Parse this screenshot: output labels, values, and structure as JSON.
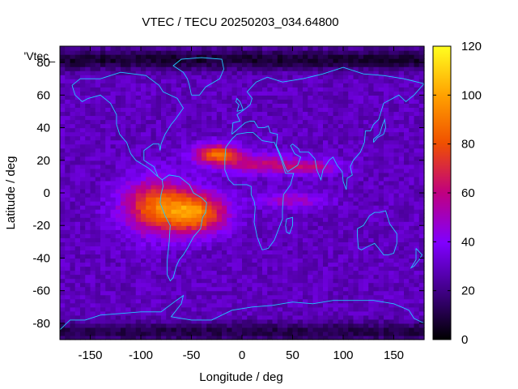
{
  "chart_data": {
    "type": "heatmap",
    "title": "VTEC / TECU 20250203_034.64800",
    "xlabel": "Longitude / deg",
    "ylabel": "Latitude / deg",
    "series_label": "'Vtec_",
    "xlim": [
      -180,
      180
    ],
    "ylim": [
      -90,
      90
    ],
    "x_ticks": [
      -150,
      -100,
      -50,
      0,
      50,
      100,
      150
    ],
    "y_ticks": [
      -80,
      -60,
      -40,
      -20,
      0,
      20,
      40,
      60,
      80
    ],
    "colorbar": {
      "range": [
        0,
        120
      ],
      "ticks": [
        0,
        20,
        40,
        60,
        80,
        100,
        120
      ],
      "colormap": [
        "#000000",
        "#3a007a",
        "#8000ff",
        "#c00080",
        "#f05000",
        "#ffa000",
        "#ffff20"
      ]
    },
    "grid_step_deg": {
      "lon": 5,
      "lat": 2.5
    },
    "field_model": {
      "background_tecu": 30,
      "low_zones": [
        {
          "lon": 0,
          "lat": 82,
          "lon_width": 200,
          "lat_width": 6,
          "drop_tecu": 22
        },
        {
          "lon": 0,
          "lat": -85,
          "lon_width": 200,
          "lat_width": 6,
          "drop_tecu": 18
        }
      ],
      "enhancements": [
        {
          "lon": -85,
          "lat": -8,
          "lon_width": 32,
          "lat_width": 16,
          "peak_tecu": 52
        },
        {
          "lon": -45,
          "lat": -12,
          "lon_width": 30,
          "lat_width": 12,
          "peak_tecu": 58
        },
        {
          "lon": -25,
          "lat": 24,
          "lon_width": 22,
          "lat_width": 6,
          "peak_tecu": 55
        },
        {
          "lon": 20,
          "lat": 18,
          "lon_width": 40,
          "lat_width": 6,
          "peak_tecu": 30
        },
        {
          "lon": 70,
          "lat": 16,
          "lon_width": 28,
          "lat_width": 4,
          "peak_tecu": 25
        },
        {
          "lon": 50,
          "lat": -4,
          "lon_width": 30,
          "lat_width": 5,
          "peak_tecu": 22
        }
      ]
    }
  }
}
